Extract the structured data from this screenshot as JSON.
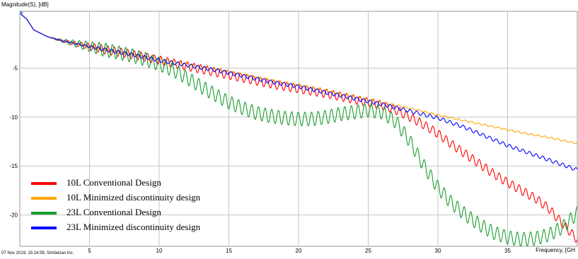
{
  "chart_data": {
    "type": "line",
    "ylabel": "Magnitude(S), [dB]",
    "xlabel": "Frequency, [GH",
    "footer": "07 Nov 2019, 15:14:39, Simberian Inc.",
    "xlim": [
      0,
      40
    ],
    "ylim": [
      -23.2,
      0.8
    ],
    "x_ticks": [
      5,
      10,
      15,
      20,
      25,
      30,
      35
    ],
    "y_ticks": [
      -5,
      -10,
      -15,
      -20
    ],
    "grid": true,
    "legend_position": "bottom-left",
    "series": [
      {
        "name": "10L Conventional Design",
        "color": "#ff0000",
        "ripple": 0.45,
        "x": [
          0,
          0.5,
          1,
          2,
          3,
          4,
          5,
          6,
          8,
          10,
          12,
          14,
          16,
          18,
          20,
          22,
          24,
          26,
          27,
          28,
          29,
          30,
          31,
          32,
          33,
          34,
          35,
          36,
          37,
          38,
          39,
          40
        ],
        "y": [
          0.6,
          0,
          -1.1,
          -1.8,
          -2.2,
          -2.5,
          -2.8,
          -3.1,
          -3.6,
          -4.2,
          -4.8,
          -5.4,
          -6.0,
          -6.6,
          -7.1,
          -7.6,
          -8.2,
          -8.8,
          -9.3,
          -10.0,
          -10.8,
          -11.7,
          -12.8,
          -13.8,
          -14.8,
          -15.8,
          -16.7,
          -17.5,
          -18.3,
          -19.4,
          -21.0,
          -22.5
        ]
      },
      {
        "name": "10L Minimized discontinuity design",
        "color": "#ffa500",
        "ripple": 0.08,
        "x": [
          0,
          0.5,
          1,
          2,
          3,
          4,
          5,
          6,
          8,
          10,
          12,
          14,
          16,
          18,
          20,
          22,
          24,
          26,
          28,
          30,
          32,
          34,
          36,
          38,
          40
        ],
        "y": [
          0.6,
          0,
          -1.1,
          -1.8,
          -2.2,
          -2.5,
          -2.8,
          -3.1,
          -3.6,
          -4.1,
          -4.6,
          -5.1,
          -5.6,
          -6.2,
          -6.7,
          -7.3,
          -7.9,
          -8.5,
          -9.1,
          -9.8,
          -10.4,
          -11.0,
          -11.6,
          -12.1,
          -12.7
        ]
      },
      {
        "name": "23L Conventional Design",
        "color": "#1a9d2e",
        "ripple": 0.7,
        "x": [
          0,
          0.5,
          1,
          2,
          3,
          4,
          5,
          6,
          8,
          9,
          10,
          11,
          12,
          13,
          14,
          15,
          16,
          17,
          18,
          19,
          20,
          21,
          22,
          23,
          24,
          25,
          26,
          27,
          28,
          29,
          30,
          31,
          32,
          33,
          34,
          35,
          36,
          37,
          38,
          39,
          40
        ],
        "y": [
          0.6,
          0,
          -1.1,
          -1.8,
          -2.2,
          -2.5,
          -2.8,
          -3.1,
          -3.7,
          -4.1,
          -4.6,
          -5.2,
          -6.0,
          -6.9,
          -7.7,
          -8.5,
          -9.1,
          -9.6,
          -9.9,
          -10.1,
          -10.2,
          -10.2,
          -10.0,
          -9.7,
          -9.5,
          -9.3,
          -9.5,
          -10.5,
          -12.5,
          -15.0,
          -17.2,
          -18.8,
          -20.0,
          -21.0,
          -21.8,
          -22.3,
          -22.5,
          -22.4,
          -22.0,
          -21.2,
          -19.8
        ]
      },
      {
        "name": "23L Minimized discontinuity design",
        "color": "#0000ff",
        "ripple": 0.18,
        "x": [
          0,
          0.5,
          1,
          2,
          3,
          4,
          5,
          6,
          8,
          10,
          12,
          14,
          16,
          18,
          20,
          22,
          24,
          26,
          28,
          30,
          31,
          32,
          33,
          34,
          35,
          36,
          37,
          38,
          39,
          40
        ],
        "y": [
          0.6,
          0,
          -1.1,
          -1.8,
          -2.2,
          -2.5,
          -2.8,
          -3.1,
          -3.6,
          -4.2,
          -4.7,
          -5.2,
          -5.8,
          -6.4,
          -6.9,
          -7.5,
          -8.1,
          -8.7,
          -9.4,
          -10.1,
          -10.6,
          -11.1,
          -11.7,
          -12.3,
          -12.9,
          -13.4,
          -13.9,
          -14.4,
          -14.9,
          -15.4
        ]
      }
    ]
  }
}
